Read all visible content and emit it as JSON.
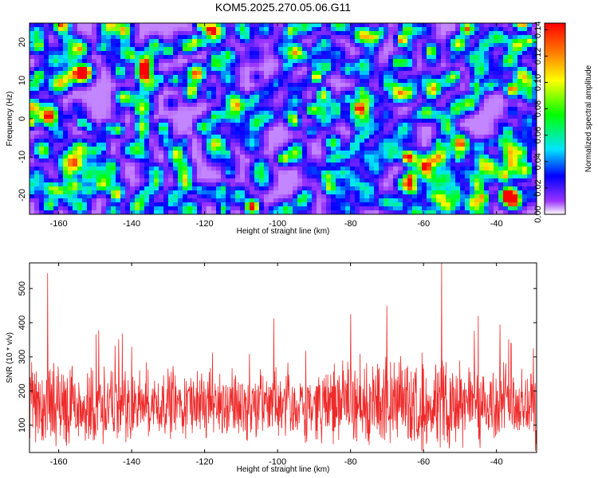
{
  "title": "KOM5.2025.270.05.06.G11",
  "colors": {
    "snr_line": "#ee2a2a",
    "frame": "#000000",
    "background": "#ffffff"
  },
  "chart_data": [
    {
      "type": "heatmap",
      "title": "KOM5.2025.270.05.06.G11",
      "xlabel": "Height of straight line (km)",
      "ylabel": "Frequency (Hz)",
      "xlim": [
        -168,
        -29
      ],
      "ylim": [
        -25,
        25
      ],
      "xticks": [
        -160,
        -140,
        -120,
        -100,
        -80,
        -60,
        -40
      ],
      "yticks": [
        -20,
        -10,
        0,
        10,
        20
      ],
      "colorbar": {
        "label": "Normalized spectral amplitude",
        "range": [
          0,
          0.145
        ],
        "ticks": [
          "0.00",
          "0.02",
          "0.04",
          "0.06",
          "0.08",
          "0.10",
          "0.12",
          "0.14"
        ],
        "colormap": [
          "#ffffff",
          "#9933ff",
          "#0000ff",
          "#00e5ff",
          "#00ff00",
          "#ffff00",
          "#ff8000",
          "#ff0000"
        ]
      },
      "description_values": "noise-like field of blobs, mostly 0.01-0.05, scattered peaks up to ~0.14"
    },
    {
      "type": "line",
      "xlabel": "Height of straight line (km)",
      "ylabel": "SNR (10 * v/v)",
      "xlim": [
        -168,
        -29
      ],
      "ylim": [
        20,
        575
      ],
      "xticks": [
        -160,
        -140,
        -120,
        -100,
        -80,
        -60,
        -40
      ],
      "yticks": [
        100,
        200,
        300,
        400,
        500
      ],
      "series": [
        {
          "name": "SNR",
          "baseline": 160,
          "noise_amplitude": 140,
          "peaks": [
            {
              "x": -163,
              "y": 545
            },
            {
              "x": -149,
              "y": 378
            },
            {
              "x": -101,
              "y": 412
            },
            {
              "x": -80,
              "y": 425
            },
            {
              "x": -70,
              "y": 450
            },
            {
              "x": -55,
              "y": 575
            },
            {
              "x": -45,
              "y": 420
            },
            {
              "x": -39,
              "y": 395
            },
            {
              "x": -36,
              "y": 340
            }
          ]
        }
      ]
    }
  ]
}
